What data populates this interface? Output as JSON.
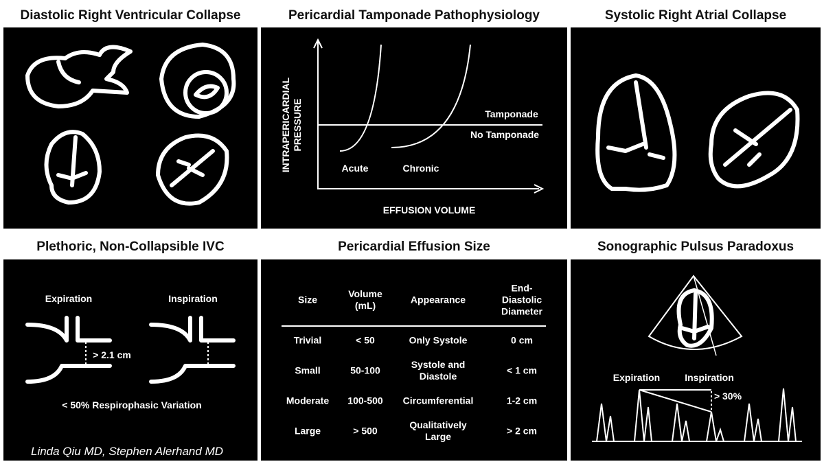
{
  "panels": [
    {
      "title": "Diastolic Right Ventricular Collapse"
    },
    {
      "title": "Pericardial Tamponade Pathophysiology",
      "y_axis_label": "INTRAPERICARDIAL PRESSURE",
      "x_axis_label": "EFFUSION VOLUME",
      "lines": [
        "Tamponade",
        "No Tamponade"
      ],
      "curves": [
        "Acute",
        "Chronic"
      ]
    },
    {
      "title": "Systolic Right Atrial Collapse"
    },
    {
      "title": "Plethoric, Non-Collapsible IVC",
      "phases": [
        "Expiration",
        "Inspiration"
      ],
      "measurement": "> 2.1 cm",
      "caption": "< 50% Respirophasic Variation"
    },
    {
      "title": "Pericardial Effusion Size",
      "table": {
        "header": [
          "Size",
          "Volume (mL)",
          "Appearance",
          "End-Diastolic Diameter"
        ],
        "rows": [
          [
            "Trivial",
            "< 50",
            "Only Systole",
            "0 cm"
          ],
          [
            "Small",
            "50-100",
            "Systole and Diastole",
            "< 1 cm"
          ],
          [
            "Moderate",
            "100-500",
            "Circumferential",
            "1-2 cm"
          ],
          [
            "Large",
            "> 500",
            "Qualitatively Large",
            "> 2 cm"
          ]
        ]
      }
    },
    {
      "title": "Sonographic Pulsus Paradoxus",
      "phases": [
        "Expiration",
        "Inspiration"
      ],
      "measurement": "> 30%"
    }
  ],
  "credit": "Linda Qiu MD, Stephen Alerhand MD"
}
